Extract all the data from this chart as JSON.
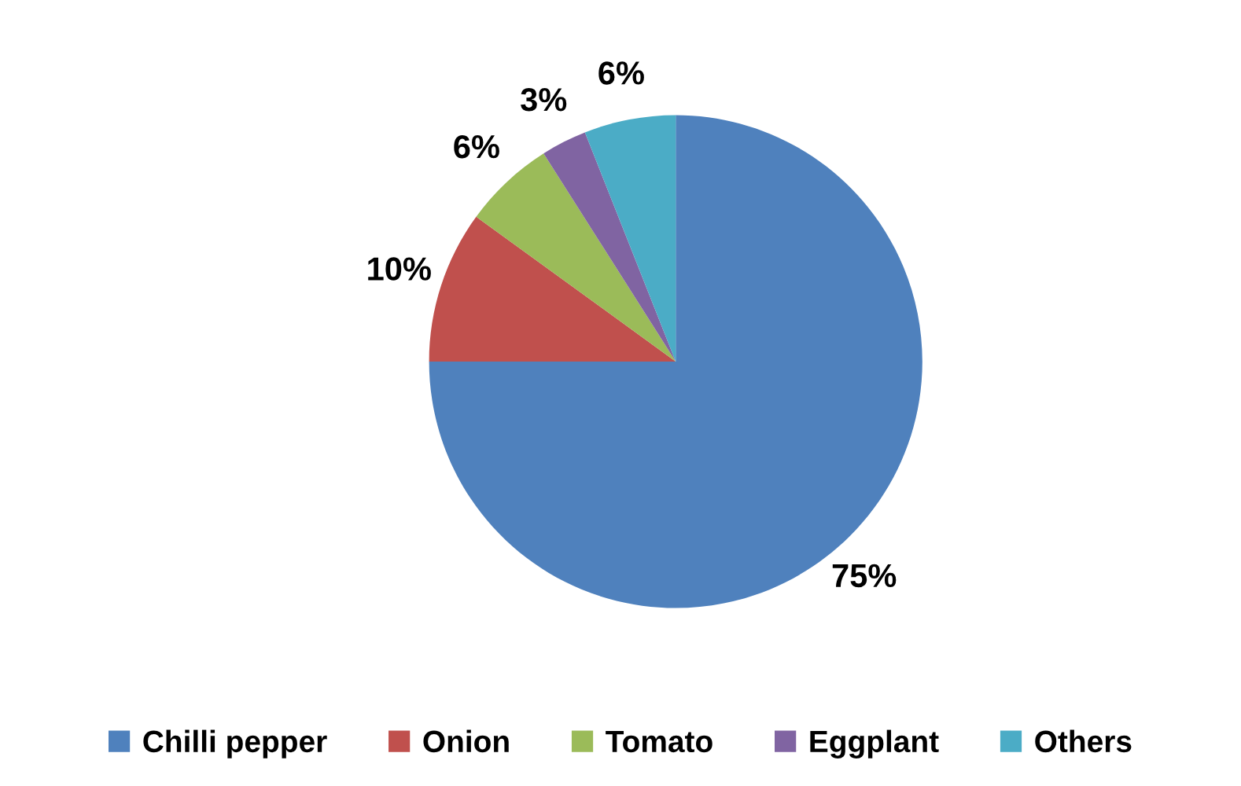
{
  "chart_data": {
    "type": "pie",
    "categories": [
      "Chilli pepper",
      "Onion",
      "Tomato",
      "Eggplant",
      "Others"
    ],
    "values": [
      75,
      10,
      6,
      3,
      6
    ],
    "colors": [
      "#4f81bd",
      "#c0504d",
      "#9bbb59",
      "#8064a2",
      "#4bacc6"
    ],
    "value_labels": [
      "75%",
      "10%",
      "6%",
      "3%",
      "6%"
    ],
    "legend": "bottom"
  }
}
